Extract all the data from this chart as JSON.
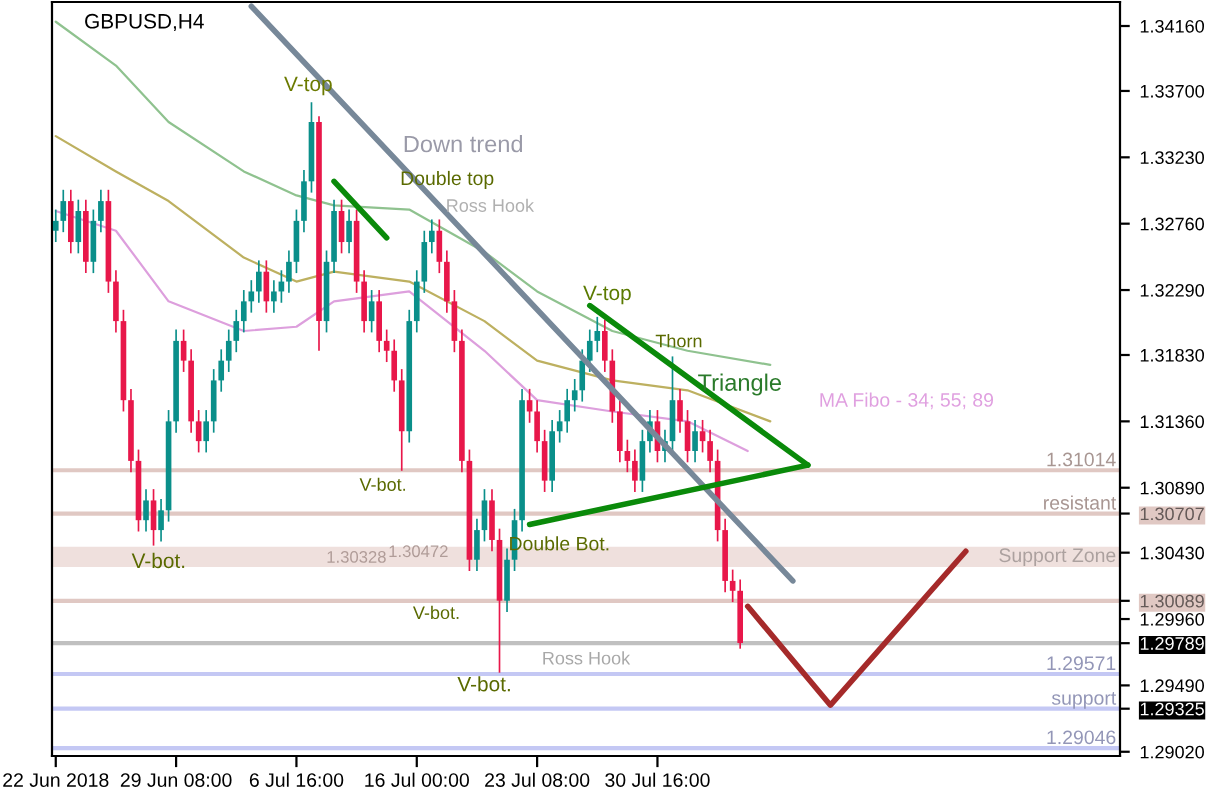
{
  "chart_data": {
    "type": "candlestick",
    "title": "GBPUSD,H4",
    "categories": [
      "22 Jun 2018",
      null,
      null,
      null,
      null,
      null,
      null,
      null,
      null,
      null,
      null,
      null,
      null,
      null,
      null,
      null,
      "29 Jun 08:00",
      null,
      null,
      null,
      null,
      null,
      null,
      null,
      null,
      null,
      null,
      null,
      null,
      null,
      null,
      null,
      "6 Jul 16:00",
      null,
      null,
      null,
      null,
      null,
      null,
      null,
      null,
      null,
      null,
      null,
      null,
      null,
      null,
      null,
      "16 Jul 00:00",
      null,
      null,
      null,
      null,
      null,
      null,
      null,
      null,
      null,
      null,
      null,
      null,
      null,
      null,
      null,
      "23 Jul 08:00",
      null,
      null,
      null,
      null,
      null,
      null,
      null,
      null,
      null,
      null,
      null,
      null,
      null,
      null,
      null,
      "30 Jul 16:00",
      null,
      null,
      null,
      null,
      null,
      null,
      null,
      null,
      null,
      null,
      null,
      null,
      null,
      null,
      null,
      null,
      null,
      null,
      null,
      null,
      null,
      null,
      null,
      null,
      null,
      null,
      null,
      null,
      null,
      null,
      null,
      null,
      null,
      null,
      null,
      null,
      null,
      null,
      null,
      null,
      null,
      null,
      null,
      null,
      null,
      null,
      null,
      null,
      null,
      null,
      null,
      null,
      null,
      null,
      null,
      null,
      null,
      null,
      null,
      null,
      null
    ],
    "colors": [
      "#0a8f8a",
      "#0a8f8a",
      "#e8174a",
      "#0a8f8a",
      "#e8174a",
      "#0a8f8a",
      "#0a8f8a",
      "#e8174a",
      "#e8174a",
      "#e8174a",
      "#e8174a",
      "#e8174a",
      "#0a8f8a",
      "#e8174a",
      "#0a8f8a",
      "#0a8f8a",
      "#0a8f8a",
      "#e8174a",
      "#e8174a",
      "#e8174a",
      "#0a8f8a",
      "#0a8f8a",
      "#0a8f8a",
      "#0a8f8a",
      "#0a8f8a",
      "#0a8f8a",
      "#0a8f8a",
      "#0a8f8a",
      "#e8174a",
      "#0a8f8a",
      "#0a8f8a",
      "#0a8f8a",
      "#0a8f8a",
      "#0a8f8a",
      "#0a8f8a",
      "#e8174a",
      "#0a8f8a",
      "#0a8f8a",
      "#e8174a",
      "#0a8f8a",
      "#e8174a",
      "#e8174a",
      "#0a8f8a",
      "#e8174a",
      "#e8174a",
      "#e8174a",
      "#e8174a",
      "#0a8f8a",
      "#0a8f8a",
      "#0a8f8a",
      "#0a8f8a",
      "#e8174a",
      "#e8174a",
      "#e8174a",
      "#e8174a",
      "#e8174a",
      "#0a8f8a",
      "#0a8f8a",
      "#e8174a",
      "#e8174a",
      "#0a8f8a",
      "#0a8f8a",
      "#0a8f8a",
      "#e8174a",
      "#e8174a",
      "#e8174a",
      "#0a8f8a",
      "#0a8f8a",
      "#0a8f8a",
      "#0a8f8a",
      "#0a8f8a",
      "#0a8f8a",
      "#0a8f8a",
      "#e8174a",
      "#e8174a",
      "#e8174a",
      "#e8174a",
      "#e8174a",
      "#0a8f8a",
      "#0a8f8a",
      "#e8174a",
      "#0a8f8a",
      "#0a8f8a",
      "#e8174a",
      "#e8174a",
      "#0a8f8a",
      "#e8174a",
      "#e8174a",
      "#e8174a",
      "#e8174a",
      "#e8174a",
      "#e8174a",
      null,
      null,
      null,
      null,
      null,
      null,
      null,
      null,
      null,
      null,
      null,
      null,
      null,
      null,
      null,
      null,
      null,
      null,
      null,
      null,
      null,
      null,
      null,
      null,
      null,
      null,
      null,
      null,
      null,
      null,
      null,
      null,
      null,
      null,
      null,
      null,
      null,
      null,
      null,
      null,
      null,
      null,
      null,
      null,
      null,
      null,
      null,
      null,
      null,
      null
    ],
    "ohlc": [
      [
        1.3271,
        1.3286,
        1.3263,
        1.3278
      ],
      [
        1.3278,
        1.33,
        1.327,
        1.3292
      ],
      [
        1.3292,
        1.33,
        1.3255,
        1.3263
      ],
      [
        1.3263,
        1.3293,
        1.3255,
        1.3285
      ],
      [
        1.3285,
        1.3293,
        1.3241,
        1.3249
      ],
      [
        1.3249,
        1.3286,
        1.3241,
        1.3278
      ],
      [
        1.3278,
        1.33,
        1.327,
        1.3292
      ],
      [
        1.3292,
        1.33,
        1.3227,
        1.3235
      ],
      [
        1.3235,
        1.3243,
        1.3199,
        1.3207
      ],
      [
        1.3207,
        1.3215,
        1.3143,
        1.3151
      ],
      [
        1.3151,
        1.3159,
        1.31,
        1.3108
      ],
      [
        1.3108,
        1.3116,
        1.3058,
        1.3066
      ],
      [
        1.3066,
        1.3088,
        1.3058,
        1.308
      ],
      [
        1.308,
        1.3088,
        1.3048,
        1.3059
      ],
      [
        1.3059,
        1.3081,
        1.3051,
        1.3073
      ],
      [
        1.3073,
        1.3144,
        1.3065,
        1.3136
      ],
      [
        1.3136,
        1.3201,
        1.3128,
        1.3193
      ],
      [
        1.3193,
        1.3201,
        1.3171,
        1.3179
      ],
      [
        1.3179,
        1.3187,
        1.3128,
        1.3136
      ],
      [
        1.3136,
        1.3144,
        1.3114,
        1.3122
      ],
      [
        1.3122,
        1.3144,
        1.3114,
        1.3136
      ],
      [
        1.3136,
        1.3173,
        1.3128,
        1.3165
      ],
      [
        1.3165,
        1.3187,
        1.3157,
        1.3179
      ],
      [
        1.3179,
        1.3201,
        1.3171,
        1.3193
      ],
      [
        1.3193,
        1.3215,
        1.3185,
        1.3207
      ],
      [
        1.3207,
        1.3229,
        1.3199,
        1.3221
      ],
      [
        1.3221,
        1.3236,
        1.3213,
        1.3228
      ],
      [
        1.3228,
        1.325,
        1.322,
        1.3242
      ],
      [
        1.3242,
        1.325,
        1.3213,
        1.3221
      ],
      [
        1.3221,
        1.3236,
        1.3213,
        1.3228
      ],
      [
        1.3228,
        1.3243,
        1.322,
        1.3235
      ],
      [
        1.3235,
        1.3257,
        1.3227,
        1.3249
      ],
      [
        1.3249,
        1.3286,
        1.3241,
        1.3278
      ],
      [
        1.3278,
        1.3314,
        1.327,
        1.3306
      ],
      [
        1.3306,
        1.3362,
        1.3298,
        1.3348
      ],
      [
        1.3348,
        1.3352,
        1.3186,
        1.3207
      ],
      [
        1.3207,
        1.3257,
        1.3199,
        1.3249
      ],
      [
        1.3249,
        1.3293,
        1.3241,
        1.3285
      ],
      [
        1.3285,
        1.3293,
        1.3255,
        1.3263
      ],
      [
        1.3263,
        1.3286,
        1.3255,
        1.3278
      ],
      [
        1.3278,
        1.3286,
        1.3227,
        1.3235
      ],
      [
        1.3235,
        1.3243,
        1.3199,
        1.3207
      ],
      [
        1.3207,
        1.3229,
        1.3199,
        1.3221
      ],
      [
        1.3221,
        1.3229,
        1.3185,
        1.3193
      ],
      [
        1.3193,
        1.3201,
        1.3178,
        1.3186
      ],
      [
        1.3186,
        1.3194,
        1.3157,
        1.3165
      ],
      [
        1.3165,
        1.3173,
        1.3101,
        1.3129
      ],
      [
        1.3129,
        1.3215,
        1.3121,
        1.3207
      ],
      [
        1.3207,
        1.3243,
        1.3199,
        1.3235
      ],
      [
        1.3235,
        1.3271,
        1.3227,
        1.3263
      ],
      [
        1.3263,
        1.3279,
        1.3255,
        1.3271
      ],
      [
        1.3271,
        1.3279,
        1.3241,
        1.3249
      ],
      [
        1.3249,
        1.3257,
        1.3213,
        1.3221
      ],
      [
        1.3221,
        1.3229,
        1.3185,
        1.3193
      ],
      [
        1.3193,
        1.3201,
        1.31,
        1.3108
      ],
      [
        1.3108,
        1.3116,
        1.303,
        1.3038
      ],
      [
        1.3038,
        1.3067,
        1.303,
        1.3059
      ],
      [
        1.3059,
        1.3088,
        1.3051,
        1.308
      ],
      [
        1.308,
        1.3088,
        1.3044,
        1.3052
      ],
      [
        1.3052,
        1.306,
        1.2958,
        1.3009
      ],
      [
        1.3009,
        1.3046,
        1.3001,
        1.3038
      ],
      [
        1.3038,
        1.3074,
        1.303,
        1.3066
      ],
      [
        1.3066,
        1.3159,
        1.3058,
        1.3151
      ],
      [
        1.3151,
        1.3159,
        1.3135,
        1.3143
      ],
      [
        1.3143,
        1.3151,
        1.3114,
        1.3122
      ],
      [
        1.3122,
        1.313,
        1.3086,
        1.3094
      ],
      [
        1.3094,
        1.3137,
        1.3086,
        1.3129
      ],
      [
        1.3129,
        1.3144,
        1.3121,
        1.3136
      ],
      [
        1.3136,
        1.3159,
        1.3128,
        1.3151
      ],
      [
        1.3151,
        1.3166,
        1.3143,
        1.3158
      ],
      [
        1.3158,
        1.3187,
        1.315,
        1.3179
      ],
      [
        1.3179,
        1.3201,
        1.3171,
        1.3193
      ],
      [
        1.3193,
        1.321,
        1.3185,
        1.32
      ],
      [
        1.32,
        1.3208,
        1.3171,
        1.3179
      ],
      [
        1.3179,
        1.3187,
        1.3135,
        1.3143
      ],
      [
        1.3143,
        1.3151,
        1.3107,
        1.3115
      ],
      [
        1.3115,
        1.3123,
        1.31,
        1.3108
      ],
      [
        1.3108,
        1.3116,
        1.3086,
        1.3094
      ],
      [
        1.3094,
        1.313,
        1.3086,
        1.3122
      ],
      [
        1.3122,
        1.3144,
        1.3114,
        1.3136
      ],
      [
        1.3136,
        1.3144,
        1.3107,
        1.3115
      ],
      [
        1.3115,
        1.313,
        1.3107,
        1.3122
      ],
      [
        1.3122,
        1.3182,
        1.3114,
        1.3151
      ],
      [
        1.3151,
        1.3159,
        1.3128,
        1.3136
      ],
      [
        1.3136,
        1.3144,
        1.3107,
        1.3115
      ],
      [
        1.3115,
        1.3137,
        1.3107,
        1.3129
      ],
      [
        1.3129,
        1.3137,
        1.3114,
        1.3122
      ],
      [
        1.3122,
        1.313,
        1.31,
        1.3108
      ],
      [
        1.3108,
        1.3116,
        1.3051,
        1.3059
      ],
      [
        1.3059,
        1.3067,
        1.3015,
        1.3023
      ],
      [
        1.3023,
        1.3031,
        1.3008,
        1.3016
      ],
      [
        1.3016,
        1.3024,
        1.2975,
        1.2979
      ],
      null,
      null,
      null,
      null,
      null,
      null,
      null,
      null,
      null,
      null,
      null,
      null,
      null,
      null,
      null,
      null,
      null,
      null,
      null,
      null,
      null,
      null,
      null,
      null,
      null,
      null,
      null,
      null,
      null,
      null,
      null,
      null,
      null,
      null,
      null,
      null,
      null,
      null,
      null,
      null,
      null,
      null,
      null,
      null,
      null,
      null,
      null,
      null,
      null,
      null
    ],
    "series": [
      {
        "type": "line",
        "color": "#8fc28f",
        "values": [
          1.3419,
          null,
          null,
          null,
          null,
          null,
          null,
          null,
          1.3388,
          null,
          null,
          null,
          null,
          null,
          null,
          1.3348,
          null,
          null,
          null,
          null,
          null,
          null,
          null,
          null,
          null,
          1.3313,
          null,
          null,
          null,
          null,
          null,
          null,
          1.3296,
          null,
          null,
          null,
          null,
          1.3289,
          null,
          null,
          null,
          null,
          null,
          null,
          null,
          null,
          null,
          1.3286,
          null,
          null,
          null,
          null,
          null,
          null,
          null,
          null,
          null,
          1.3256,
          null,
          null,
          null,
          null,
          null,
          null,
          1.3228,
          null,
          null,
          null,
          null,
          null,
          null,
          null,
          null,
          null,
          1.32,
          null,
          null,
          null,
          null,
          null,
          null,
          null,
          null,
          null,
          1.3186,
          null,
          null,
          null,
          null,
          null,
          null,
          null,
          null,
          null,
          null,
          1.3176,
          null,
          null,
          null,
          null,
          null,
          null,
          null,
          null,
          null,
          null,
          null,
          null,
          null,
          null,
          null,
          null,
          null,
          null,
          null,
          null,
          null,
          null,
          null,
          null,
          null,
          null,
          null,
          null,
          null,
          null,
          null,
          null,
          null,
          null,
          null,
          null,
          null,
          null,
          null,
          null,
          null,
          null,
          null,
          null,
          null,
          null
        ]
      },
      {
        "type": "line",
        "color": "#bdb060",
        "values": [
          1.3338,
          null,
          null,
          null,
          null,
          null,
          null,
          null,
          1.3313,
          null,
          null,
          null,
          null,
          null,
          null,
          1.3292,
          null,
          null,
          null,
          null,
          null,
          null,
          null,
          null,
          null,
          1.3252,
          null,
          null,
          null,
          null,
          null,
          null,
          1.3235,
          null,
          null,
          null,
          null,
          1.3242,
          null,
          null,
          null,
          null,
          null,
          null,
          null,
          null,
          null,
          1.3235,
          null,
          null,
          null,
          null,
          null,
          null,
          null,
          null,
          null,
          1.3207,
          null,
          null,
          null,
          null,
          null,
          null,
          1.3179,
          null,
          null,
          null,
          null,
          null,
          null,
          null,
          null,
          null,
          1.3165,
          null,
          null,
          null,
          null,
          null,
          null,
          null,
          null,
          null,
          1.3158,
          null,
          null,
          null,
          null,
          null,
          null,
          null,
          null,
          null,
          null,
          1.3136,
          null,
          null,
          null,
          null,
          null,
          null,
          null,
          null,
          null,
          null,
          null,
          null,
          null,
          null,
          null,
          null,
          null,
          null,
          null,
          null,
          null,
          null,
          null,
          null,
          null,
          null,
          null,
          null,
          null,
          null,
          null,
          null,
          null,
          null,
          null,
          null,
          null,
          null,
          null,
          null,
          null,
          null,
          null,
          null,
          null,
          null
        ]
      },
      {
        "type": "line",
        "color": "#dd9fdd",
        "values": [
          1.3285,
          null,
          null,
          null,
          null,
          null,
          null,
          null,
          1.3271,
          null,
          null,
          null,
          null,
          null,
          null,
          1.3221,
          null,
          null,
          null,
          null,
          null,
          null,
          null,
          null,
          null,
          1.32,
          null,
          null,
          null,
          null,
          null,
          null,
          1.3203,
          null,
          null,
          null,
          null,
          1.3221,
          null,
          null,
          null,
          null,
          null,
          null,
          null,
          null,
          null,
          1.3228,
          null,
          null,
          null,
          null,
          null,
          null,
          null,
          null,
          null,
          1.3186,
          null,
          null,
          null,
          null,
          null,
          null,
          1.3151,
          null,
          null,
          null,
          null,
          null,
          null,
          null,
          null,
          null,
          1.3143,
          null,
          null,
          null,
          null,
          null,
          null,
          null,
          null,
          null,
          1.3136,
          null,
          null,
          null,
          null,
          null,
          null,
          null,
          1.3115,
          null,
          null,
          null,
          null,
          null,
          null,
          null,
          null,
          null,
          null,
          null,
          null,
          null,
          null,
          null,
          null,
          null,
          null,
          null,
          null,
          null,
          null,
          null,
          null,
          null,
          null,
          null,
          null,
          null,
          null,
          null,
          null,
          null,
          null,
          null,
          null,
          null,
          null,
          null,
          null,
          null,
          null,
          null,
          null,
          null,
          null,
          null,
          null,
          null
        ]
      },
      {
        "type": "line",
        "color": "#778899",
        "values": [
          null,
          null,
          null,
          null,
          null,
          null,
          null,
          null,
          null,
          null,
          null,
          null,
          null,
          null,
          null,
          null,
          null,
          null,
          null,
          null,
          null,
          null,
          null,
          null,
          null,
          null,
          1.343,
          null,
          null,
          null,
          null,
          null,
          null,
          null,
          null,
          null,
          null,
          null,
          null,
          null,
          null,
          null,
          null,
          null,
          null,
          null,
          null,
          null,
          null,
          null,
          null,
          null,
          null,
          null,
          null,
          null,
          null,
          null,
          null,
          null,
          null,
          null,
          null,
          null,
          null,
          null,
          null,
          null,
          null,
          null,
          null,
          null,
          null,
          null,
          null,
          null,
          null,
          null,
          null,
          null,
          null,
          null,
          null,
          null,
          null,
          null,
          null,
          null,
          null,
          null,
          null,
          null,
          null,
          null,
          null,
          null,
          null,
          null,
          1.3023,
          null,
          null,
          null,
          null,
          null,
          null,
          null,
          null,
          null,
          null,
          null,
          null,
          null,
          null,
          null,
          null,
          null,
          null,
          null,
          null,
          null,
          null,
          null,
          null,
          null,
          null,
          null,
          null,
          null,
          null,
          null,
          null,
          null,
          null,
          null,
          null,
          null,
          null,
          null,
          null,
          null,
          null,
          null
        ]
      },
      {
        "type": "line",
        "color": "#0a8a0a",
        "values": [
          null,
          null,
          null,
          null,
          null,
          null,
          null,
          null,
          null,
          null,
          null,
          null,
          null,
          null,
          null,
          null,
          null,
          null,
          null,
          null,
          null,
          null,
          null,
          null,
          null,
          null,
          null,
          null,
          null,
          null,
          null,
          null,
          null,
          null,
          null,
          null,
          null,
          1.3306,
          null,
          null,
          null,
          null,
          null,
          null,
          1.3266,
          null,
          null,
          null,
          null,
          null,
          null,
          null,
          null,
          null,
          null,
          null,
          null,
          null,
          null,
          null,
          null,
          null,
          null,
          null,
          null,
          null,
          null,
          null,
          null,
          null,
          null,
          null,
          null,
          null,
          null,
          null,
          null,
          null,
          null,
          null,
          null,
          null,
          null,
          null,
          null,
          null,
          null,
          null,
          null,
          null,
          null,
          null,
          null,
          null,
          null,
          null,
          null,
          null,
          null,
          null,
          null,
          null,
          null,
          null,
          null,
          null,
          null,
          null,
          null,
          null,
          null,
          null,
          null,
          null,
          null,
          null,
          null,
          null,
          null,
          null,
          null,
          null,
          null,
          null,
          null,
          null,
          null,
          null,
          null,
          null,
          null,
          null,
          null,
          null,
          null,
          null,
          null,
          null,
          null,
          null,
          null,
          null
        ]
      },
      {
        "type": "line",
        "color": "#0a8a0a",
        "values": [
          null,
          null,
          null,
          null,
          null,
          null,
          null,
          null,
          null,
          null,
          null,
          null,
          null,
          null,
          null,
          null,
          null,
          null,
          null,
          null,
          null,
          null,
          null,
          null,
          null,
          null,
          null,
          null,
          null,
          null,
          null,
          null,
          null,
          null,
          null,
          null,
          null,
          null,
          null,
          null,
          null,
          null,
          null,
          null,
          null,
          null,
          null,
          null,
          null,
          null,
          null,
          null,
          null,
          null,
          null,
          null,
          null,
          null,
          null,
          null,
          null,
          null,
          null,
          null,
          null,
          null,
          null,
          null,
          null,
          null,
          null,
          1.3218,
          null,
          null,
          null,
          null,
          null,
          null,
          null,
          null,
          null,
          null,
          null,
          null,
          null,
          null,
          null,
          null,
          null,
          null,
          null,
          null,
          null,
          null,
          null,
          null,
          null,
          null,
          null,
          null,
          1.3105,
          null,
          null,
          null,
          null,
          null,
          null,
          null,
          null,
          null,
          null,
          null,
          null,
          null,
          null,
          null,
          null,
          null,
          null,
          null,
          null,
          null,
          null,
          null,
          null,
          null,
          null,
          null,
          null,
          null,
          null,
          null,
          null,
          null,
          null,
          null,
          null,
          null,
          null,
          null,
          null,
          null
        ]
      },
      {
        "type": "line",
        "color": "#0a8a0a",
        "values": [
          null,
          null,
          null,
          null,
          null,
          null,
          null,
          null,
          null,
          null,
          null,
          null,
          null,
          null,
          null,
          null,
          null,
          null,
          null,
          null,
          null,
          null,
          null,
          null,
          null,
          null,
          null,
          null,
          null,
          null,
          null,
          null,
          null,
          null,
          null,
          null,
          null,
          null,
          null,
          null,
          null,
          null,
          null,
          null,
          null,
          null,
          null,
          null,
          null,
          null,
          null,
          null,
          null,
          null,
          null,
          null,
          null,
          null,
          null,
          null,
          null,
          null,
          null,
          1.3063,
          null,
          null,
          null,
          null,
          null,
          null,
          null,
          null,
          null,
          null,
          null,
          null,
          null,
          null,
          null,
          null,
          null,
          null,
          null,
          null,
          null,
          null,
          null,
          null,
          null,
          null,
          null,
          null,
          null,
          null,
          null,
          null,
          null,
          null,
          null,
          null,
          1.3105,
          null,
          null,
          null,
          null,
          null,
          null,
          null,
          null,
          null,
          null,
          null,
          null,
          null,
          null,
          null,
          null,
          null,
          null,
          null,
          null,
          null,
          null,
          null,
          null,
          null,
          null,
          null,
          null,
          null,
          null,
          null,
          null,
          null,
          null,
          null,
          null,
          null,
          null,
          null,
          null,
          null
        ]
      },
      {
        "type": "line",
        "color": "#a52a2a",
        "values": [
          null,
          null,
          null,
          null,
          null,
          null,
          null,
          null,
          null,
          null,
          null,
          null,
          null,
          null,
          null,
          null,
          null,
          null,
          null,
          null,
          null,
          null,
          null,
          null,
          null,
          null,
          null,
          null,
          null,
          null,
          null,
          null,
          null,
          null,
          null,
          null,
          null,
          null,
          null,
          null,
          null,
          null,
          null,
          null,
          null,
          null,
          null,
          null,
          null,
          null,
          null,
          null,
          null,
          null,
          null,
          null,
          null,
          null,
          null,
          null,
          null,
          null,
          null,
          null,
          null,
          null,
          null,
          null,
          null,
          null,
          null,
          null,
          null,
          null,
          null,
          null,
          null,
          null,
          null,
          null,
          null,
          null,
          null,
          null,
          null,
          null,
          null,
          null,
          null,
          null,
          null,
          null,
          1.3005,
          null,
          null,
          null,
          null,
          null,
          null,
          null,
          null,
          null,
          null,
          1.2935,
          null,
          null,
          null,
          null,
          null,
          null,
          null,
          null,
          null,
          null,
          null,
          null,
          null,
          null,
          null,
          null,
          null,
          1.3044,
          null,
          null,
          null,
          null,
          null,
          null,
          null,
          null,
          null,
          null,
          null,
          null,
          null,
          null,
          null,
          null,
          null,
          null,
          null,
          null
        ]
      }
    ],
    "ylim": [
      1.2899,
      1.3433
    ],
    "yticks": [
      {
        "value": 1.3416,
        "label": "1.34160"
      },
      {
        "value": 1.337,
        "label": "1.33700"
      },
      {
        "value": 1.3323,
        "label": "1.33230"
      },
      {
        "value": 1.3276,
        "label": "1.32760"
      },
      {
        "value": 1.3229,
        "label": "1.32290"
      },
      {
        "value": 1.3183,
        "label": "1.31830"
      },
      {
        "value": 1.3136,
        "label": "1.31360"
      },
      {
        "value": 1.3089,
        "label": "1.30890"
      },
      {
        "value": 1.3043,
        "label": "1.30430"
      },
      {
        "value": 1.2996,
        "label": "1.29960"
      },
      {
        "value": 1.2949,
        "label": "1.29490"
      },
      {
        "value": 1.2902,
        "label": "1.29020"
      },
      1.30707,
      1.30089,
      1.29789,
      1.29325
    ],
    "ref_lines": [
      {
        "axis": "y",
        "value": 1.31014,
        "label": "1.31014",
        "color": "#e0c8c3"
      },
      {
        "axis": "y",
        "value": 1.30707,
        "label": "resistant",
        "color": "#e0c8c3"
      },
      {
        "axis": "y",
        "value": 1.30089,
        "label": null,
        "color": "#e0c8c3"
      },
      {
        "axis": "y",
        "value": 1.29789,
        "label": null,
        "color": "#c0c0c0"
      },
      {
        "axis": "y",
        "value": 1.29571,
        "label": "1.29571",
        "color": "#c4c8f4"
      },
      {
        "axis": "y",
        "value": 1.29325,
        "label": "support",
        "color": "#c4c8f4"
      },
      {
        "axis": "y",
        "value": 1.29046,
        "label": "1.29046",
        "color": "#c4c8f4"
      }
    ],
    "bands": [
      {
        "axis": "y",
        "from": 1.30328,
        "to": 1.30472,
        "label": "Support Zone",
        "color": "#efe0dd"
      }
    ],
    "annotations": [
      {
        "text": "V-top",
        "y": 1.3362
      },
      "Down trend",
      "Double top",
      "Ross Hook",
      {
        "text": "V-top",
        "y": 1.321
      },
      {
        "text": "Thorn",
        "y": 1.3182
      },
      {
        "text": "Triangle",
        "y": 1.3105
      },
      "MA Fibo - 34; 55; 89",
      "V-bot.",
      {
        "text": "Double Bot.",
        "y": 1.3062
      },
      {
        "text": "V-bot.",
        "y": 1.3036
      },
      "V-bot.",
      {
        "text": "Ross Hook",
        "y": 1.2979
      },
      "V-bot.",
      {
        "text": "1.30472",
        "y": 1.3043
      },
      {
        "text": "1.30328",
        "y": 1.3039
      }
    ]
  }
}
